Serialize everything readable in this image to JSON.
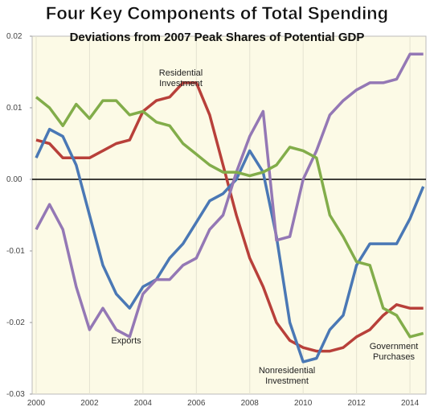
{
  "chart_data": {
    "type": "line",
    "title": "Four Key Components of Total Spending",
    "subtitle": "Deviations from 2007 Peak Shares of Potential GDP",
    "x": [
      2000,
      2000.5,
      2001,
      2001.5,
      2002,
      2002.5,
      2003,
      2003.5,
      2004,
      2004.5,
      2005,
      2005.5,
      2006,
      2006.5,
      2007,
      2007.5,
      2008,
      2008.5,
      2009,
      2009.5,
      2010,
      2010.5,
      2011,
      2011.5,
      2012,
      2012.5,
      2013,
      2013.5,
      2014,
      2014.5
    ],
    "series": [
      {
        "name": "Residential Investment",
        "color": "#b8403a",
        "values": [
          0.0055,
          0.005,
          0.003,
          0.003,
          0.003,
          0.004,
          0.005,
          0.0055,
          0.0095,
          0.011,
          0.0115,
          0.0135,
          0.0135,
          0.009,
          0.002,
          -0.005,
          -0.011,
          -0.015,
          -0.02,
          -0.0225,
          -0.0235,
          -0.024,
          -0.024,
          -0.0235,
          -0.022,
          -0.021,
          -0.019,
          -0.0175,
          -0.018,
          -0.018
        ]
      },
      {
        "name": "Nonresidential Investment",
        "color": "#4a78b5",
        "values": [
          0.003,
          0.007,
          0.006,
          0.002,
          -0.005,
          -0.012,
          -0.016,
          -0.018,
          -0.015,
          -0.014,
          -0.011,
          -0.009,
          -0.006,
          -0.003,
          -0.002,
          0,
          0.004,
          0.001,
          -0.008,
          -0.02,
          -0.0255,
          -0.025,
          -0.021,
          -0.019,
          -0.012,
          -0.009,
          -0.009,
          -0.009,
          -0.0055,
          -0.001
        ]
      },
      {
        "name": "Exports",
        "color": "#9478b5",
        "values": [
          -0.007,
          -0.0035,
          -0.007,
          -0.015,
          -0.021,
          -0.018,
          -0.021,
          -0.022,
          -0.016,
          -0.014,
          -0.014,
          -0.012,
          -0.011,
          -0.007,
          -0.005,
          0.001,
          0.006,
          0.0095,
          -0.0085,
          -0.008,
          0,
          0.004,
          0.009,
          0.011,
          0.0125,
          0.0135,
          0.0135,
          0.014,
          0.0175,
          0.0175
        ]
      },
      {
        "name": "Government Purchases",
        "color": "#82ad4a",
        "values": [
          0.0115,
          0.01,
          0.0075,
          0.0105,
          0.0085,
          0.011,
          0.011,
          0.009,
          0.0095,
          0.008,
          0.0075,
          0.005,
          0.0035,
          0.002,
          0.001,
          0.001,
          0.0005,
          0.001,
          0.002,
          0.0045,
          0.004,
          0.003,
          -0.005,
          -0.008,
          -0.0115,
          -0.012,
          -0.018,
          -0.019,
          -0.022,
          -0.0215
        ]
      }
    ],
    "xlim": [
      1999.85,
      2014.6
    ],
    "xticks": [
      2000,
      2002,
      2004,
      2006,
      2008,
      2010,
      2012,
      2014
    ],
    "ylim": [
      -0.03,
      0.02
    ],
    "yticks": [
      0.02,
      0.01,
      {
        "value": 0,
        "label": "0.00"
      },
      -0.01,
      -0.02,
      -0.03
    ],
    "grid": true
  }
}
